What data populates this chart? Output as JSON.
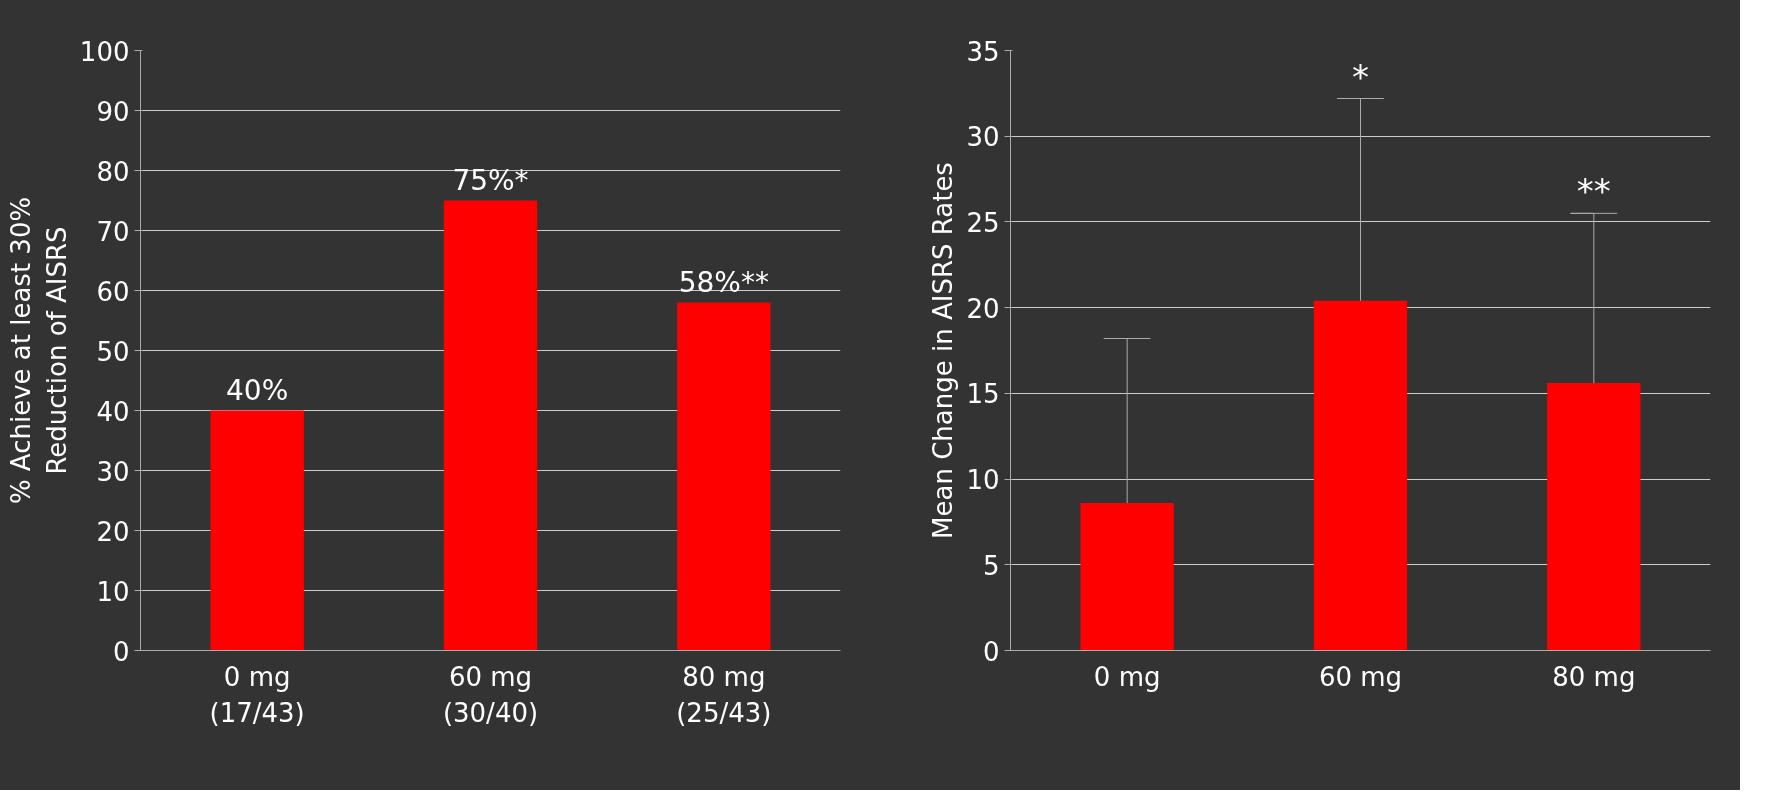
{
  "chart_data": [
    {
      "type": "bar",
      "ylabel": "% Achieve at least 30%\nReduction of AISRS",
      "categories": [
        "0 mg\n(17/43)",
        "60 mg\n(30/40)",
        "80 mg\n(25/43)"
      ],
      "values": [
        40,
        75,
        58
      ],
      "color": "#ff0000",
      "value_labels": [
        "40%",
        "75%*",
        "58%**"
      ],
      "ylim": [
        0,
        100
      ],
      "yticks": [
        0,
        10,
        20,
        30,
        40,
        50,
        60,
        70,
        80,
        90,
        100
      ],
      "grid": "y"
    },
    {
      "type": "bar",
      "ylabel": "Mean Change in AISRS Rates",
      "categories": [
        "0 mg",
        "60 mg",
        "80 mg"
      ],
      "values": [
        8.6,
        20.4,
        15.6
      ],
      "color": "#ff0000",
      "errors": [
        [
          8.6,
          18.2
        ],
        [
          20.4,
          32.2
        ],
        [
          15.6,
          25.5
        ]
      ],
      "ylim": [
        0,
        35
      ],
      "yticks": [
        0,
        5,
        10,
        15,
        20,
        25,
        30,
        35
      ],
      "grid": "y",
      "annotations": [
        {
          "text": "*",
          "x": "60 mg",
          "y": 32.2
        },
        {
          "text": "**",
          "x": "80 mg",
          "y": 25.5
        }
      ]
    }
  ]
}
